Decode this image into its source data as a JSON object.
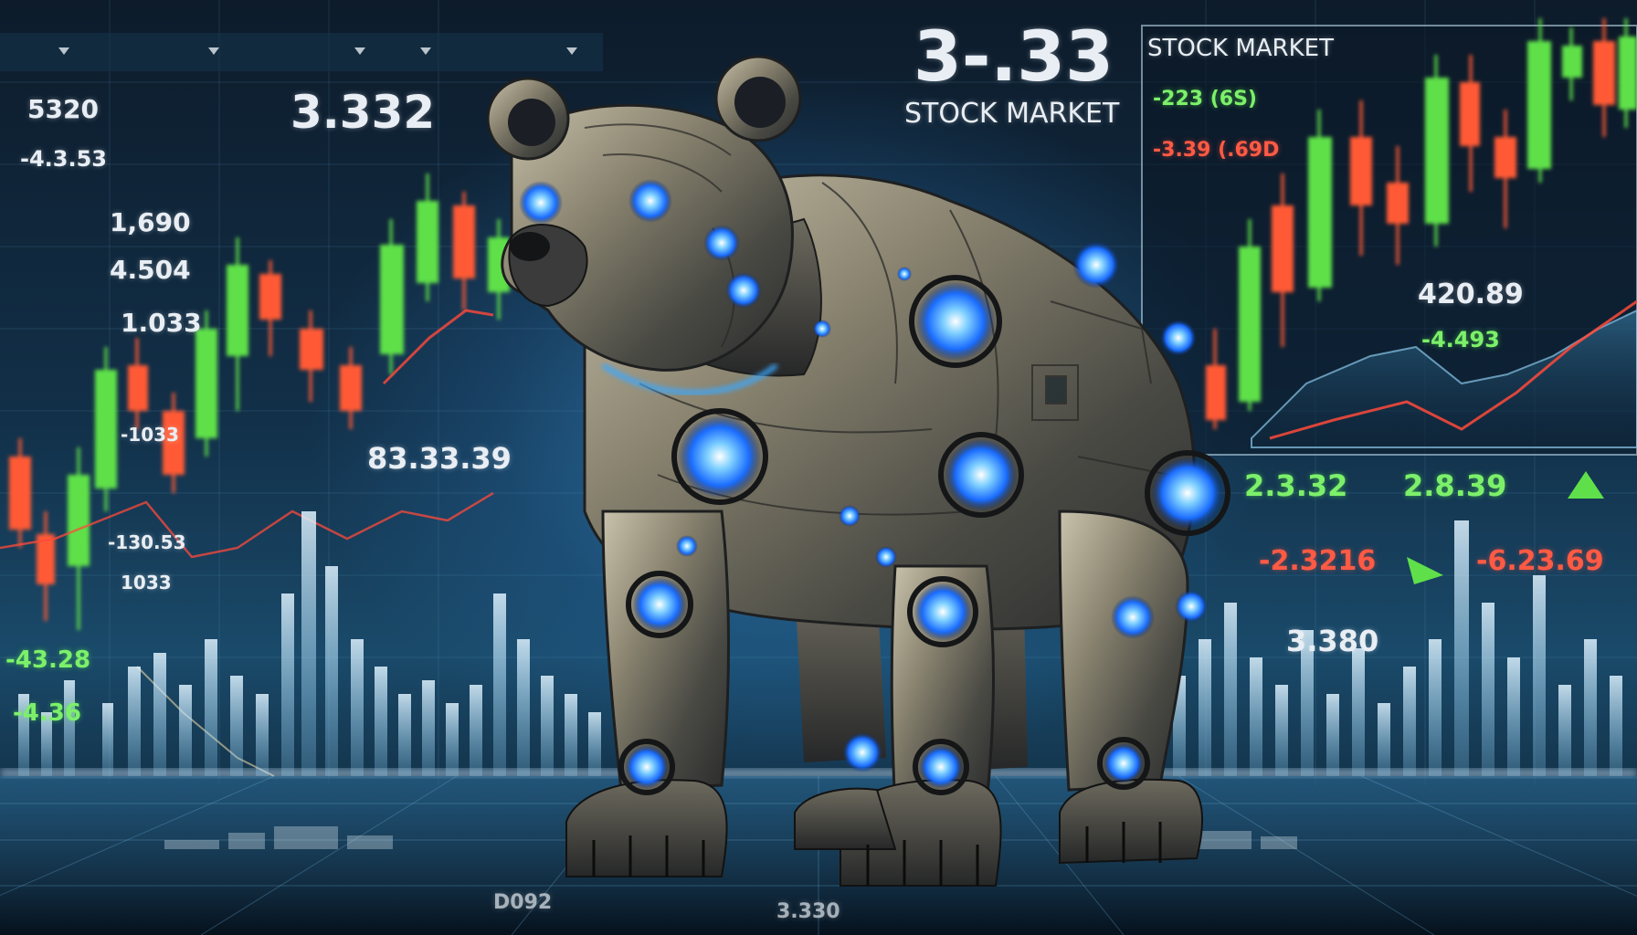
{
  "scene": {
    "description_free": true,
    "colors": {
      "up": "#5fe04a",
      "down": "#ff5a36",
      "glow": "#3aa8ff",
      "metal": "#8a8470"
    }
  },
  "headline": {
    "big_number": "3-.33",
    "title": "STOCK MARKET"
  },
  "panel": {
    "title": "STOCK MARKET",
    "up_quote": "-223 (6S)",
    "down_quote": "-3.39 (.69D",
    "value": "420.89",
    "change": "-4.493"
  },
  "left_column": {
    "top_value": "3.332",
    "items": [
      "5320",
      "-4.3.53",
      "1,690",
      "4.504",
      "1.033",
      "-1033",
      "-130.53",
      "1033",
      "-43.28",
      "-4.36"
    ],
    "mid_value": "83.33.39"
  },
  "right_quotes": {
    "green_1": "2.3.32",
    "green_2": "2.8.39",
    "red_1": "-2.3216",
    "red_2": "-6.23.69",
    "white_1": "3.380"
  },
  "floor_labels": [
    "D092",
    "3.330"
  ]
}
